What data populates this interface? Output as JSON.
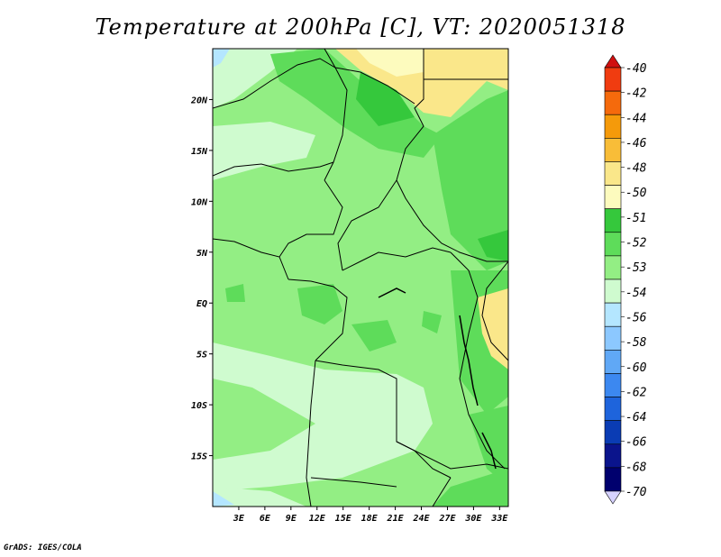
{
  "title": "Temperature at 200hPa [C], VT: 2020051318",
  "footer": "GrADS: IGES/COLA",
  "map": {
    "lon_range": [
      0,
      34
    ],
    "lat_range": [
      -20,
      25
    ],
    "x_ticks": [
      "3E",
      "6E",
      "9E",
      "12E",
      "15E",
      "18E",
      "21E",
      "24E",
      "27E",
      "30E",
      "33E"
    ],
    "y_ticks": [
      "20N",
      "15N",
      "10N",
      "5N",
      "EQ",
      "5S",
      "10S",
      "15S"
    ]
  },
  "colorbar": {
    "labels": [
      "-40",
      "-42",
      "-44",
      "-46",
      "-48",
      "-50",
      "-51",
      "-52",
      "-53",
      "-54",
      "-56",
      "-58",
      "-60",
      "-62",
      "-64",
      "-66",
      "-68",
      "-70"
    ],
    "colors": [
      "#d01010",
      "#f03c10",
      "#f56a0c",
      "#f59a0a",
      "#f8bd38",
      "#fae78a",
      "#fdfbbe",
      "#35c83c",
      "#5edc5a",
      "#93ee84",
      "#cffbcf",
      "#b4e6ff",
      "#8cc8ff",
      "#60a8f6",
      "#3c88f0",
      "#1e64dc",
      "#0a3cb4",
      "#0a148c",
      "#00006e",
      "#d6d2ff"
    ]
  }
}
